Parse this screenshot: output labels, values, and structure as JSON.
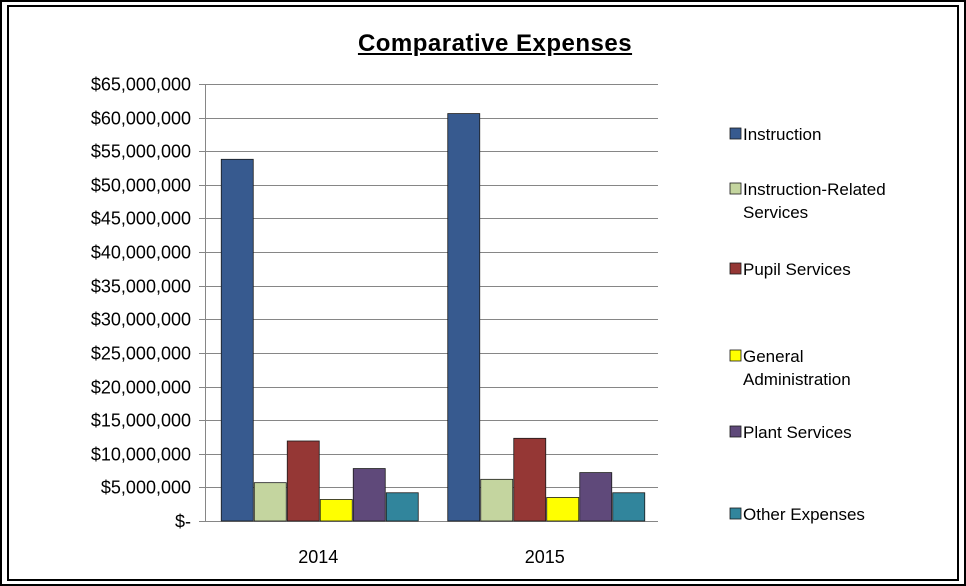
{
  "chart_data": {
    "type": "bar",
    "title": "Comparative Expenses",
    "xlabel": "",
    "ylabel": "",
    "categories": [
      "2014",
      "2015"
    ],
    "ylim": [
      0,
      65000000
    ],
    "y_tick_values": [
      0,
      5000000,
      10000000,
      15000000,
      20000000,
      25000000,
      30000000,
      35000000,
      40000000,
      45000000,
      50000000,
      55000000,
      60000000,
      65000000
    ],
    "y_tick_labels": [
      "$-",
      "$5,000,000",
      "$10,000,000",
      "$15,000,000",
      "$20,000,000",
      "$25,000,000",
      "$30,000,000",
      "$35,000,000",
      "$40,000,000",
      "$45,000,000",
      "$50,000,000",
      "$55,000,000",
      "$60,000,000",
      "$65,000,000"
    ],
    "grid": true,
    "legend_position": "right",
    "series": [
      {
        "name": "Instruction",
        "legend_lines": [
          "Instruction"
        ],
        "color": "#375A8F",
        "values": [
          53800000,
          60600000
        ]
      },
      {
        "name": "Instruction-Related Services",
        "legend_lines": [
          "Instruction-Related",
          "Services"
        ],
        "color": "#C4D59F",
        "values": [
          5700000,
          6200000
        ]
      },
      {
        "name": "Pupil Services",
        "legend_lines": [
          "Pupil Services"
        ],
        "color": "#953735",
        "values": [
          11900000,
          12300000
        ]
      },
      {
        "name": "General Administration",
        "legend_lines": [
          "General",
          "Administration"
        ],
        "color": "#FFFF00",
        "values": [
          3200000,
          3500000
        ]
      },
      {
        "name": "Plant Services",
        "legend_lines": [
          "Plant Services"
        ],
        "color": "#5F497A",
        "values": [
          7800000,
          7200000
        ]
      },
      {
        "name": "Other Expenses",
        "legend_lines": [
          "Other Expenses"
        ],
        "color": "#31859C",
        "values": [
          4200000,
          4200000
        ]
      }
    ]
  }
}
